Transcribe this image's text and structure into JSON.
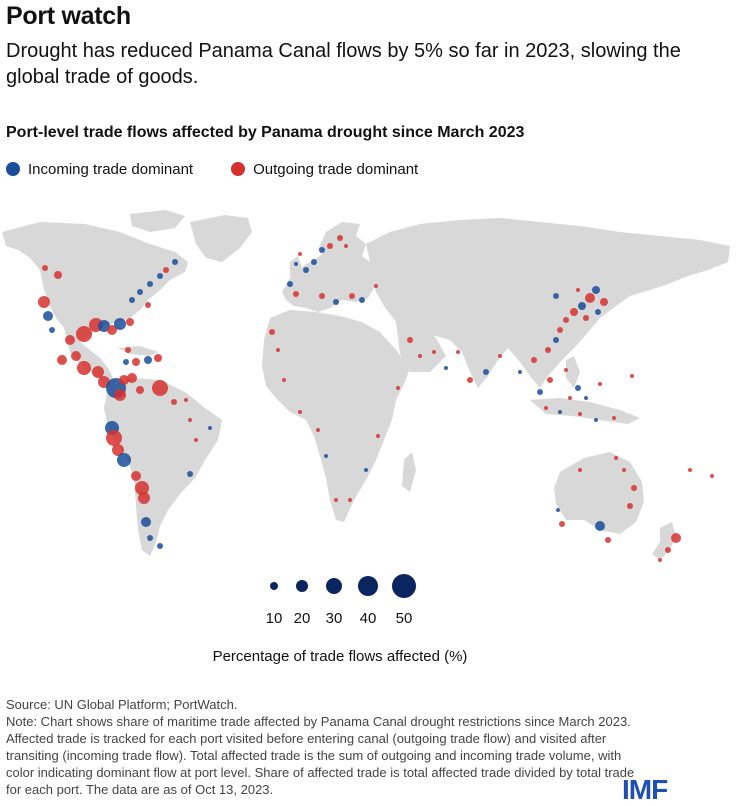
{
  "header": {
    "title": "Port watch",
    "subtitle": "Drought has reduced Panama Canal flows by 5% so far in 2023, slowing the global trade of goods."
  },
  "map": {
    "title": "Port-level trade flows affected by Panama drought since March 2023",
    "legend": [
      {
        "label": "Incoming trade dominant",
        "color": "#1a4e9a"
      },
      {
        "label": "Outgoing trade dominant",
        "color": "#d6312f"
      }
    ],
    "land_color": "#d8d8d8",
    "size_legend": {
      "values": [
        "10",
        "20",
        "30",
        "40",
        "50"
      ],
      "color": "#0b2561",
      "caption": "Percentage of trade flows affected (%)"
    }
  },
  "footer": {
    "source": "Source: UN Global Platform; PortWatch.",
    "note": "Note: Chart shows share of maritime trade affected by Panama Canal drought restrictions since March 2023. Affected trade is tracked for each port visited before entering canal (outgoing trade flow) and visited after transiting (incoming trade flow). Total affected trade is the sum of outgoing and incoming trade volume, with color indicating dominant flow at port level. Share of affected trade is total affected trade divided by total trade for each port. The data are as of Oct 13, 2023.",
    "logo": "IMF"
  }
}
